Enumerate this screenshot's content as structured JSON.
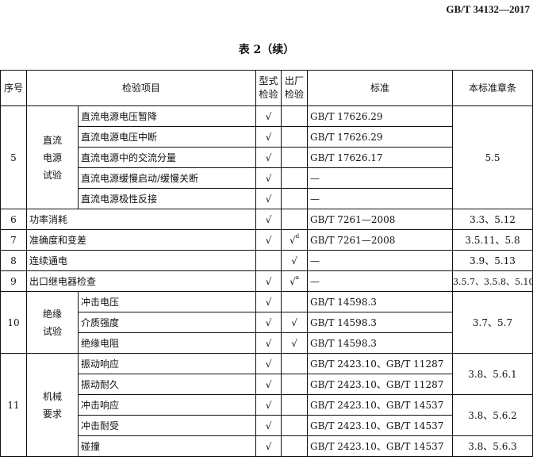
{
  "doc_number": "GB/T 34132—2017",
  "table_title": "表 2（续）",
  "headers": {
    "no": "序号",
    "item": "检验项目",
    "type_test": "型式\n检验",
    "factory_test": "出厂\n检验",
    "standard": "标准",
    "clause": "本标准章条"
  },
  "rows": [
    {
      "no": "5",
      "group": "直流\n电源\n试验",
      "items": [
        {
          "name": "直流电源电压暂降",
          "type": "√",
          "factory": "",
          "standard": "GB/T 17626.29",
          "clause": "5.5"
        },
        {
          "name": "直流电源电压中断",
          "type": "√",
          "factory": "",
          "standard": "GB/T 17626.29",
          "clause": "5.5"
        },
        {
          "name": "直流电源中的交流分量",
          "type": "√",
          "factory": "",
          "standard": "GB/T 17626.17",
          "clause": "5.5"
        },
        {
          "name": "直流电源缓慢启动/缓慢关断",
          "type": "√",
          "factory": "",
          "standard": "—",
          "clause": "5.5"
        },
        {
          "name": "直流电源极性反接",
          "type": "√",
          "factory": "",
          "standard": "—",
          "clause": "5.5"
        }
      ]
    },
    {
      "no": "6",
      "group": "",
      "items": [
        {
          "name": "功率消耗",
          "type": "√",
          "factory": "",
          "standard": "GB/T 7261—2008",
          "clause": "3.3、5.12"
        }
      ]
    },
    {
      "no": "7",
      "group": "",
      "items": [
        {
          "name": "准确度和变差",
          "type": "√",
          "factory": "√",
          "factory_note": "d",
          "standard": "GB/T 7261—2008",
          "clause": "3.5.11、5.8"
        }
      ]
    },
    {
      "no": "8",
      "group": "",
      "items": [
        {
          "name": "连续通电",
          "type": "",
          "factory": "√",
          "standard": "—",
          "clause": "3.9、5.13"
        }
      ]
    },
    {
      "no": "9",
      "group": "",
      "items": [
        {
          "name": "出口继电器检查",
          "type": "√",
          "factory": "√",
          "factory_note": "a",
          "standard": "—",
          "clause": "3.5.7、3.5.8、5.10"
        }
      ]
    },
    {
      "no": "10",
      "group": "绝缘\n试验",
      "items": [
        {
          "name": "冲击电压",
          "type": "√",
          "factory": "",
          "standard": "GB/T 14598.3",
          "clause": "3.7、5.7"
        },
        {
          "name": "介质强度",
          "type": "√",
          "factory": "√",
          "standard": "GB/T 14598.3",
          "clause": "3.7、5.7"
        },
        {
          "name": "绝缘电阻",
          "type": "√",
          "factory": "√",
          "standard": "GB/T 14598.3",
          "clause": "3.7、5.7"
        }
      ]
    },
    {
      "no": "11",
      "group": "机械\n要求",
      "items": [
        {
          "name": "振动响应",
          "type": "√",
          "factory": "",
          "standard": "GB/T 2423.10、GB/T 11287",
          "clause": "3.8、5.6.1"
        },
        {
          "name": "振动耐久",
          "type": "√",
          "factory": "",
          "standard": "GB/T 2423.10、GB/T 11287",
          "clause": "3.8、5.6.1"
        },
        {
          "name": "冲击响应",
          "type": "√",
          "factory": "",
          "standard": "GB/T 2423.10、GB/T 14537",
          "clause": "3.8、5.6.2"
        },
        {
          "name": "冲击耐受",
          "type": "√",
          "factory": "",
          "standard": "GB/T 2423.10、GB/T 14537",
          "clause": "3.8、5.6.2"
        },
        {
          "name": "碰撞",
          "type": "√",
          "factory": "",
          "standard": "GB/T 2423.10、GB/T 14537",
          "clause": "3.8、5.6.3"
        }
      ]
    }
  ]
}
